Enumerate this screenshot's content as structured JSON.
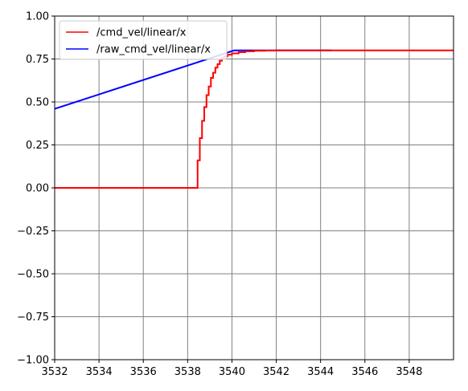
{
  "chart_data": {
    "type": "line",
    "grid": true,
    "grid_color": "#808080",
    "legend_position": "top-left",
    "xlim": [
      3532,
      3550
    ],
    "ylim": [
      -1.0,
      1.0
    ],
    "x_ticks": [
      3532,
      3534,
      3536,
      3538,
      3540,
      3542,
      3544,
      3546,
      3548
    ],
    "y_ticks": [
      -1.0,
      -0.75,
      -0.5,
      -0.25,
      0.0,
      0.25,
      0.5,
      0.75,
      1.0
    ],
    "x_tick_labels": [
      "3532",
      "3534",
      "3536",
      "3538",
      "3540",
      "3542",
      "3544",
      "3546",
      "3548"
    ],
    "y_tick_labels": [
      "−1.00",
      "−0.75",
      "−0.50",
      "−0.25",
      "0.00",
      "0.25",
      "0.50",
      "0.75",
      "1.00"
    ],
    "series": [
      {
        "name": "/cmd_vel/linear/x",
        "color": "#ff0000",
        "step": true,
        "x": [
          3532.0,
          3538.4,
          3538.45,
          3538.55,
          3538.65,
          3538.75,
          3538.85,
          3538.95,
          3539.05,
          3539.15,
          3539.25,
          3539.35,
          3539.45,
          3539.55,
          3539.65,
          3539.8,
          3540.0,
          3540.3,
          3540.6,
          3541.0,
          3541.5,
          3542.0,
          3544.0,
          3550.0
        ],
        "y": [
          0.0,
          0.0,
          0.16,
          0.29,
          0.39,
          0.47,
          0.54,
          0.59,
          0.64,
          0.67,
          0.7,
          0.72,
          0.74,
          0.755,
          0.765,
          0.775,
          0.783,
          0.79,
          0.795,
          0.798,
          0.799,
          0.8,
          0.8,
          0.8
        ]
      },
      {
        "name": "/raw_cmd_vel/linear/x",
        "color": "#0000ff",
        "step": false,
        "x": [
          3532.0,
          3540.1,
          3544.5
        ],
        "y": [
          0.46,
          0.8,
          0.8
        ]
      }
    ]
  }
}
